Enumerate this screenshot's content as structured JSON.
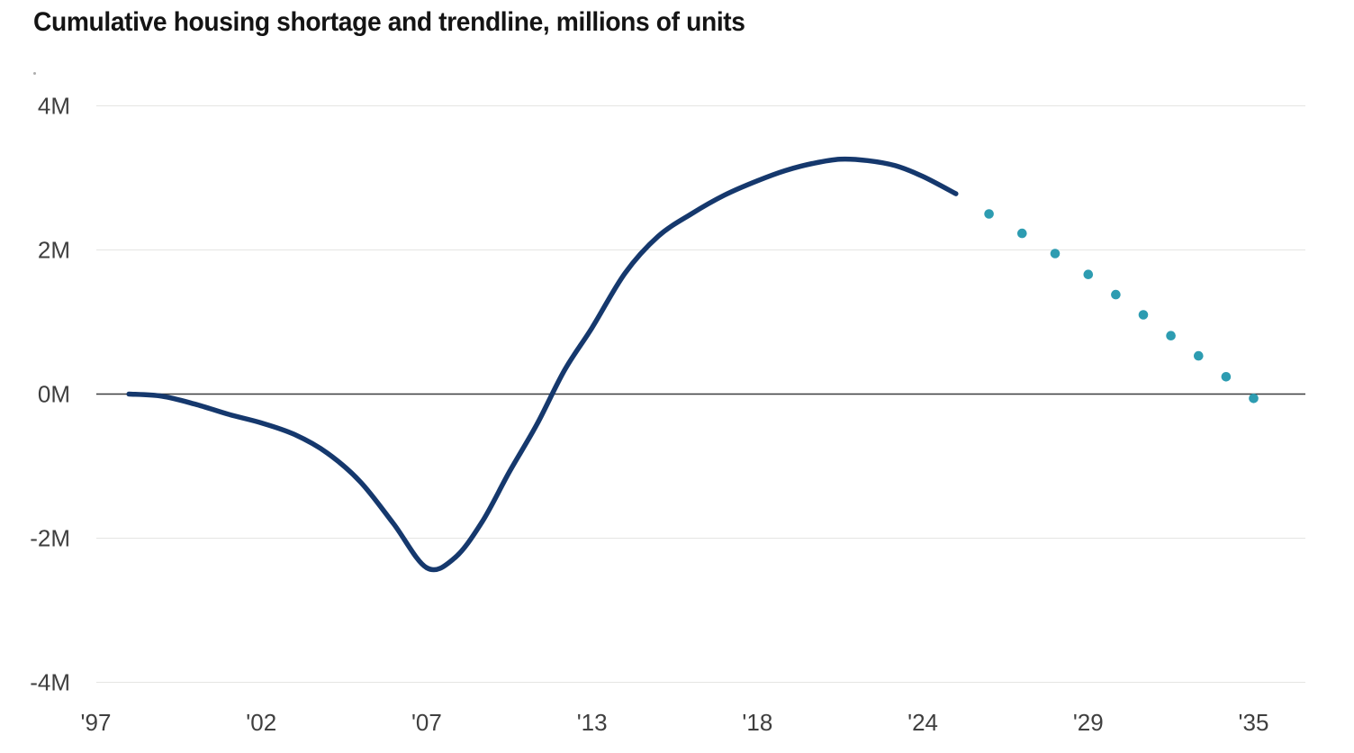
{
  "title": "Cumulative housing shortage and trendline, millions of units",
  "colors": {
    "line": "#15386d",
    "dots": "#2d9cb1",
    "grid": "#e5e5e3",
    "zero_line": "#3b3d3f",
    "tick_text": "#3f3f3f",
    "title_text": "#141414",
    "background": "#ffffff"
  },
  "chart_data": {
    "type": "line",
    "title": "Cumulative housing shortage and trendline, millions of units",
    "xlabel": "",
    "ylabel": "millions of units",
    "ylim": [
      -4,
      4
    ],
    "grid": "horizontal",
    "legend": "none",
    "y_ticks": [
      {
        "value": 4,
        "label": "4M"
      },
      {
        "value": 2,
        "label": "2M"
      },
      {
        "value": 0,
        "label": "0M"
      },
      {
        "value": -2,
        "label": "-2M"
      },
      {
        "value": -4,
        "label": "-4M"
      }
    ],
    "x_ticks": [
      {
        "year": 1997,
        "label": "'97"
      },
      {
        "year": 2002,
        "label": "'02"
      },
      {
        "year": 2007,
        "label": "'07"
      },
      {
        "year": 2013,
        "label": "'13"
      },
      {
        "year": 2018,
        "label": "'18"
      },
      {
        "year": 2024,
        "label": "'24"
      },
      {
        "year": 2029,
        "label": "'29"
      },
      {
        "year": 2035,
        "label": "'35"
      }
    ],
    "series": [
      {
        "name": "cumulative housing shortage (actual)",
        "style": "solid",
        "color": "#15386d",
        "points": [
          [
            1998,
            0.0
          ],
          [
            1999,
            -0.03
          ],
          [
            2000,
            -0.14
          ],
          [
            2001,
            -0.28
          ],
          [
            2002,
            -0.4
          ],
          [
            2003,
            -0.56
          ],
          [
            2004,
            -0.82
          ],
          [
            2005,
            -1.22
          ],
          [
            2006,
            -1.8
          ],
          [
            2007,
            -2.41
          ],
          [
            2008,
            -2.28
          ],
          [
            2009,
            -1.78
          ],
          [
            2010,
            -1.08
          ],
          [
            2011,
            -0.42
          ],
          [
            2012,
            0.33
          ],
          [
            2013,
            0.92
          ],
          [
            2014,
            1.68
          ],
          [
            2015,
            2.19
          ],
          [
            2016,
            2.5
          ],
          [
            2017,
            2.76
          ],
          [
            2018,
            2.96
          ],
          [
            2019,
            3.1
          ],
          [
            2020,
            3.2
          ],
          [
            2021,
            3.26
          ],
          [
            2022,
            3.24
          ],
          [
            2023,
            3.17
          ],
          [
            2024,
            3.02
          ],
          [
            2025,
            2.78
          ]
        ]
      },
      {
        "name": "trendline (projection)",
        "style": "dots",
        "color": "#2d9cb1",
        "points": [
          [
            2026,
            2.5
          ],
          [
            2027,
            2.23
          ],
          [
            2028,
            1.95
          ],
          [
            2029,
            1.66
          ],
          [
            2030,
            1.38
          ],
          [
            2031,
            1.1
          ],
          [
            2032,
            0.81
          ],
          [
            2033,
            0.53
          ],
          [
            2034,
            0.24
          ],
          [
            2035,
            -0.06
          ]
        ]
      }
    ]
  }
}
